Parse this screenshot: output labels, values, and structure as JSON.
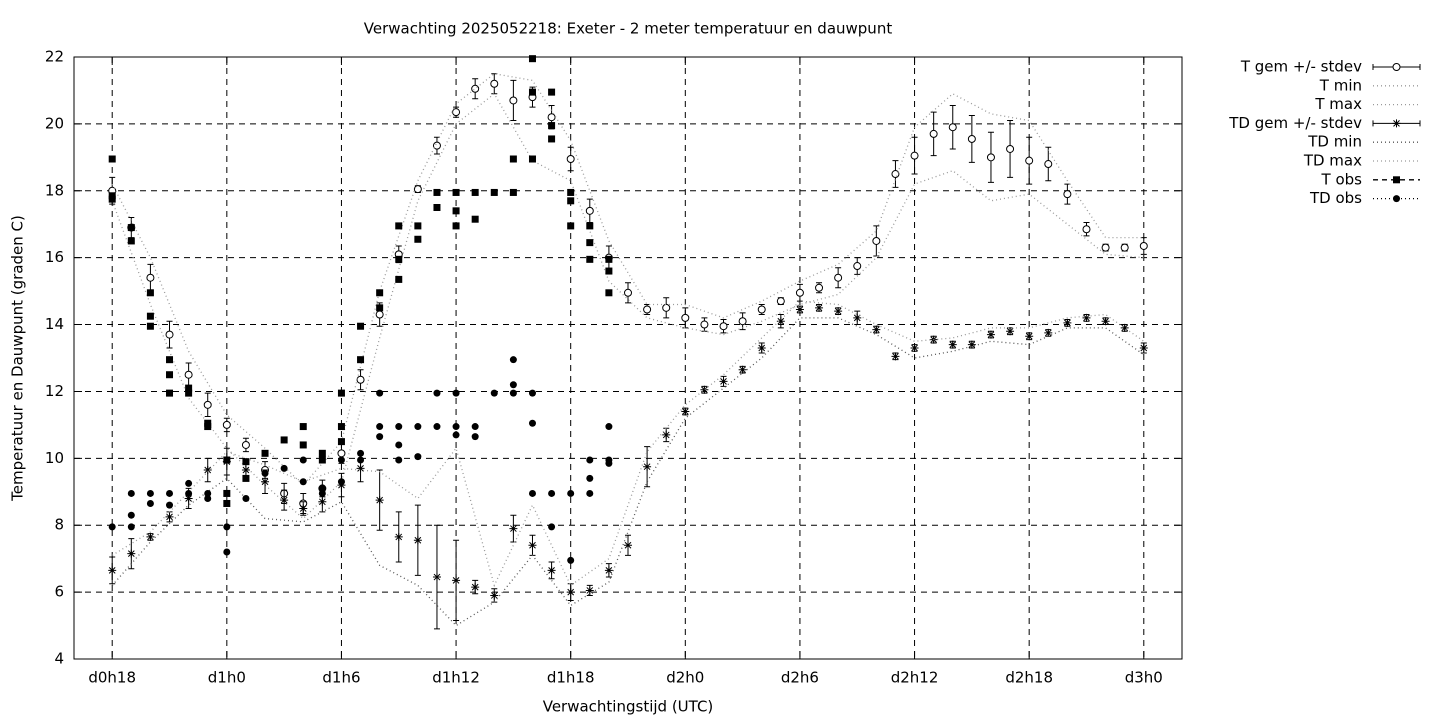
{
  "chart_data": {
    "type": "errorpoints",
    "title": "Verwachting 2025052218: Exeter - 2 meter temperatuur en dauwpunt",
    "x_label": "Verwachtingstijd (UTC)",
    "y_label": "Temperatuur en Dauwpunt (graden C)",
    "xlim": [
      -2,
      56
    ],
    "ylim": [
      4,
      22
    ],
    "xticks": [
      {
        "value": 0,
        "label": "d0h18"
      },
      {
        "value": 6,
        "label": "d1h0"
      },
      {
        "value": 12,
        "label": "d1h6"
      },
      {
        "value": 18,
        "label": "d1h12"
      },
      {
        "value": 24,
        "label": "d1h18"
      },
      {
        "value": 30,
        "label": "d2h0"
      },
      {
        "value": 36,
        "label": "d2h6"
      },
      {
        "value": 42,
        "label": "d2h12"
      },
      {
        "value": 48,
        "label": "d2h18"
      },
      {
        "value": 54,
        "label": "d3h0"
      }
    ],
    "yticks": [
      4,
      6,
      8,
      10,
      12,
      14,
      16,
      18,
      20,
      22
    ],
    "grid": true,
    "legend": "outside-top-right",
    "series": [
      {
        "name": "T gem +/- stdev",
        "color": "#000000",
        "marker": "open-circle",
        "line": "errorbar",
        "x": [
          0,
          1,
          2,
          3,
          4,
          5,
          6,
          7,
          8,
          9,
          10,
          11,
          12,
          13,
          14,
          15,
          16,
          17,
          18,
          19,
          20,
          21,
          22,
          23,
          24,
          25,
          26,
          27,
          28,
          29,
          30,
          31,
          32,
          33,
          34,
          35,
          36,
          37,
          38,
          39,
          40,
          41,
          42,
          43,
          44,
          45,
          46,
          47,
          48,
          49,
          50,
          51,
          52,
          53,
          54
        ],
        "values": [
          18.0,
          16.9,
          15.4,
          13.7,
          12.5,
          11.6,
          11.0,
          10.4,
          9.65,
          8.95,
          8.65,
          9.1,
          10.15,
          12.35,
          14.3,
          16.1,
          18.05,
          19.35,
          20.35,
          21.05,
          21.2,
          20.7,
          20.8,
          20.2,
          18.95,
          17.4,
          16.0,
          14.95,
          14.45,
          14.5,
          14.2,
          14.0,
          13.95,
          14.1,
          14.45,
          14.7,
          14.95,
          15.1,
          15.4,
          15.75,
          16.5,
          18.5,
          19.05,
          19.7,
          19.9,
          19.55,
          19.0,
          19.25,
          18.9,
          18.8,
          17.9,
          16.85,
          16.3,
          16.3,
          16.35
        ],
        "errors": [
          0.4,
          0.3,
          0.4,
          0.4,
          0.35,
          0.35,
          0.2,
          0.2,
          0.25,
          0.3,
          0.3,
          0.25,
          0.3,
          0.3,
          0.35,
          0.25,
          0.1,
          0.25,
          0.15,
          0.3,
          0.3,
          0.6,
          0.3,
          0.35,
          0.35,
          0.35,
          0.35,
          0.3,
          0.15,
          0.3,
          0.3,
          0.2,
          0.2,
          0.25,
          0.15,
          0.1,
          0.25,
          0.15,
          0.3,
          0.25,
          0.45,
          0.4,
          0.55,
          0.65,
          0.65,
          0.7,
          0.75,
          0.85,
          0.7,
          0.5,
          0.3,
          0.2,
          0.1,
          0.1,
          0.25
        ]
      },
      {
        "name": "T min",
        "color": "#999999",
        "line": "dotted",
        "x": [
          0,
          2,
          4,
          6,
          8,
          10,
          12,
          14,
          16,
          18,
          20,
          22,
          24,
          26,
          28,
          30,
          32,
          34,
          36,
          38,
          40,
          42,
          44,
          46,
          48,
          50,
          52,
          54
        ],
        "values": [
          17.7,
          14.6,
          11.8,
          10.3,
          9.2,
          8.2,
          9.3,
          13.6,
          17.7,
          20.0,
          20.9,
          18.9,
          18.3,
          15.3,
          14.2,
          13.9,
          13.7,
          14.1,
          14.6,
          14.9,
          16.0,
          18.2,
          18.6,
          17.7,
          17.9,
          17.0,
          16.1,
          16.0
        ]
      },
      {
        "name": "T max",
        "color": "#999999",
        "line": "dotted",
        "x": [
          0,
          2,
          4,
          6,
          8,
          10,
          12,
          14,
          16,
          18,
          20,
          22,
          24,
          26,
          28,
          30,
          32,
          34,
          36,
          38,
          40,
          42,
          44,
          46,
          48,
          50,
          52,
          54
        ],
        "values": [
          18.2,
          16.0,
          13.2,
          11.3,
          10.3,
          9.2,
          10.5,
          15.0,
          18.3,
          20.6,
          21.5,
          21.3,
          19.5,
          16.5,
          14.6,
          14.6,
          14.2,
          14.7,
          15.3,
          15.8,
          16.8,
          19.9,
          20.9,
          20.3,
          20.1,
          18.3,
          16.6,
          16.6
        ]
      },
      {
        "name": "TD gem +/- stdev",
        "color": "#000000",
        "marker": "star",
        "line": "errorbar",
        "x": [
          0,
          1,
          2,
          3,
          4,
          5,
          6,
          7,
          8,
          9,
          10,
          11,
          12,
          13,
          14,
          15,
          16,
          17,
          18,
          19,
          20,
          21,
          22,
          23,
          24,
          25,
          26,
          27,
          28,
          29,
          30,
          31,
          32,
          33,
          34,
          35,
          36,
          37,
          38,
          39,
          40,
          41,
          42,
          43,
          44,
          45,
          46,
          47,
          48,
          49,
          50,
          51,
          52,
          53,
          54
        ],
        "values": [
          6.65,
          7.15,
          7.65,
          8.25,
          8.8,
          9.65,
          9.9,
          9.65,
          9.3,
          8.75,
          8.5,
          8.7,
          9.2,
          9.7,
          8.75,
          7.65,
          7.55,
          6.45,
          6.35,
          6.15,
          5.9,
          7.9,
          7.4,
          6.65,
          6.0,
          6.05,
          6.65,
          7.4,
          9.75,
          10.7,
          11.4,
          12.05,
          12.3,
          12.65,
          13.3,
          14.1,
          14.45,
          14.5,
          14.4,
          14.2,
          13.85,
          13.05,
          13.3,
          13.55,
          13.4,
          13.4,
          13.7,
          13.8,
          13.65,
          13.75,
          14.05,
          14.2,
          14.1,
          13.9,
          13.3
        ],
        "errors": [
          0.4,
          0.45,
          0.1,
          0.15,
          0.3,
          0.35,
          0.4,
          0.3,
          0.35,
          0.3,
          0.2,
          0.3,
          0.35,
          0.4,
          0.9,
          0.75,
          1.05,
          1.55,
          1.2,
          0.2,
          0.2,
          0.4,
          0.3,
          0.25,
          0.25,
          0.15,
          0.2,
          0.3,
          0.6,
          0.2,
          0.1,
          0.1,
          0.15,
          0.1,
          0.15,
          0.2,
          0.1,
          0.1,
          0.1,
          0.2,
          0.1,
          0.1,
          0.1,
          0.1,
          0.1,
          0.1,
          0.1,
          0.1,
          0.1,
          0.1,
          0.1,
          0.1,
          0.1,
          0.1,
          0.15
        ]
      },
      {
        "name": "TD min",
        "color": "#555555",
        "line": "dotted",
        "x": [
          0,
          2,
          4,
          6,
          8,
          10,
          12,
          14,
          16,
          18,
          20,
          22,
          24,
          26,
          28,
          30,
          32,
          34,
          36,
          38,
          40,
          42,
          44,
          46,
          48,
          50,
          52,
          54
        ],
        "values": [
          6.2,
          7.5,
          8.6,
          9.4,
          8.2,
          8.1,
          8.7,
          6.8,
          6.2,
          5.0,
          5.7,
          7.1,
          5.6,
          6.3,
          9.3,
          11.2,
          12.1,
          13.0,
          14.2,
          14.2,
          13.7,
          13.0,
          13.2,
          13.5,
          13.4,
          13.9,
          13.9,
          13.1
        ]
      },
      {
        "name": "TD max",
        "color": "#999999",
        "line": "dotted",
        "x": [
          0,
          2,
          4,
          6,
          8,
          10,
          12,
          14,
          16,
          18,
          20,
          22,
          24,
          26,
          28,
          30,
          32,
          34,
          36,
          38,
          40,
          42,
          44,
          46,
          48,
          50,
          52,
          54
        ],
        "values": [
          7.1,
          7.8,
          9.0,
          10.2,
          9.8,
          9.3,
          9.7,
          9.6,
          8.8,
          10.3,
          6.2,
          8.6,
          6.2,
          7.0,
          10.2,
          11.6,
          12.5,
          13.6,
          14.7,
          14.6,
          14.0,
          13.5,
          13.6,
          13.9,
          13.9,
          14.2,
          14.3,
          13.5
        ]
      },
      {
        "name": "T obs",
        "color": "#000000",
        "marker": "square",
        "line": "dashed",
        "x": [
          0,
          0,
          0,
          1,
          1,
          2,
          2,
          2,
          3,
          3,
          3,
          4,
          4,
          5,
          5,
          6,
          6,
          6,
          7,
          7,
          8,
          9,
          10,
          10,
          11,
          11,
          12,
          12,
          12,
          13,
          13,
          14,
          14,
          15,
          15,
          15,
          16,
          16,
          17,
          17,
          18,
          18,
          18,
          19,
          19,
          20,
          21,
          21,
          22,
          22,
          22,
          23,
          23,
          23,
          24,
          24,
          24,
          25,
          25,
          25,
          26,
          26,
          26
        ],
        "values": [
          18.95,
          17.85,
          17.75,
          16.9,
          16.5,
          14.95,
          14.25,
          13.95,
          12.95,
          12.5,
          11.95,
          12.1,
          11.95,
          11.05,
          10.95,
          9.95,
          8.95,
          8.65,
          9.9,
          9.4,
          10.15,
          10.55,
          10.95,
          10.4,
          10.15,
          9.95,
          11.95,
          10.95,
          10.5,
          13.95,
          12.95,
          14.95,
          14.5,
          16.95,
          15.95,
          15.35,
          16.95,
          16.55,
          17.95,
          17.5,
          17.95,
          17.4,
          16.95,
          17.95,
          17.15,
          17.95,
          18.95,
          17.95,
          21.95,
          20.95,
          18.95,
          20.95,
          19.95,
          19.55,
          17.95,
          17.7,
          16.95,
          16.95,
          16.45,
          15.95,
          15.95,
          15.6,
          14.95
        ]
      },
      {
        "name": "TD obs",
        "color": "#000000",
        "marker": "dot",
        "line": "dotted",
        "x": [
          0,
          1,
          1,
          1,
          2,
          2,
          3,
          3,
          4,
          4,
          5,
          5,
          6,
          6,
          7,
          8,
          9,
          10,
          10,
          11,
          11,
          12,
          12,
          13,
          13,
          14,
          14,
          14,
          15,
          15,
          15,
          16,
          16,
          17,
          17,
          18,
          18,
          18,
          19,
          19,
          20,
          21,
          21,
          21,
          22,
          22,
          22,
          23,
          23,
          24,
          24,
          25,
          25,
          25,
          26,
          26,
          26
        ],
        "values": [
          7.95,
          8.95,
          8.3,
          7.95,
          8.95,
          8.65,
          8.95,
          8.6,
          9.25,
          8.95,
          8.95,
          8.8,
          7.95,
          7.2,
          8.8,
          9.55,
          9.7,
          9.95,
          9.3,
          9.1,
          8.95,
          9.95,
          9.3,
          10.15,
          9.95,
          11.95,
          10.95,
          10.65,
          10.95,
          10.4,
          9.95,
          10.95,
          10.05,
          11.95,
          10.95,
          11.95,
          10.95,
          10.7,
          10.95,
          10.65,
          11.95,
          12.95,
          12.2,
          11.95,
          11.95,
          11.05,
          8.95,
          8.95,
          7.95,
          8.95,
          6.95,
          9.95,
          9.4,
          8.95,
          10.95,
          9.95,
          9.85
        ]
      }
    ]
  }
}
